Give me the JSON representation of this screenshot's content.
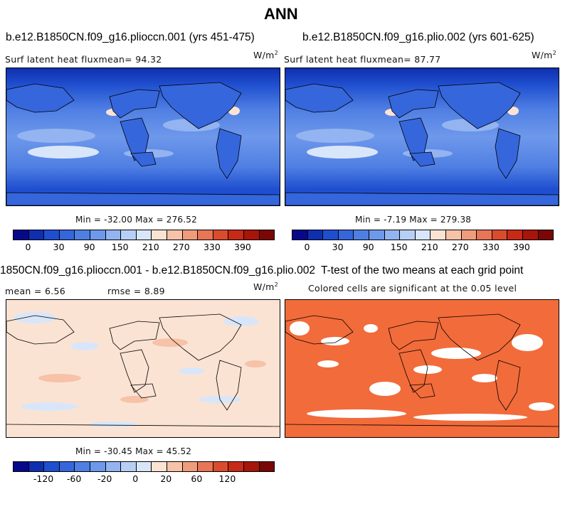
{
  "title": "ANN",
  "panels": {
    "top_left": {
      "title": "b.e12.B1850CN.f09_g16.plioccn.001 (yrs 451-475)",
      "left_label": "Surf latent heat fluxmean=  94.32",
      "units": "W/m",
      "units_sup": "2",
      "stats": "Min = -32.00 Max = 276.52"
    },
    "top_right": {
      "title": "b.e12.B1850CN.f09_g16.plio.002 (yrs 601-625)",
      "left_label": "Surf latent heat fluxmean=  87.77",
      "units": "W/m",
      "units_sup": "2",
      "stats": "Min =  -7.19 Max = 279.38"
    },
    "bottom_left": {
      "title": "1850CN.f09_g16.plioccn.001 - b.e12.B1850CN.f09_g16.plio.002",
      "left_label": "mean =   6.56",
      "rmse_label": "rmse =   8.89",
      "units": "W/m",
      "units_sup": "2",
      "stats": "Min = -30.45 Max =  45.52"
    },
    "bottom_right": {
      "title": "T-test of the two means at each grid point",
      "subtitle": "Colored cells are significant at the 0.05 level"
    }
  },
  "colorbars": {
    "absolute": {
      "ticks": [
        "0",
        "30",
        "90",
        "150",
        "210",
        "270",
        "330",
        "390"
      ],
      "colors": [
        "#08088a",
        "#0f2fb0",
        "#1f4fcf",
        "#3566dc",
        "#4f7fe3",
        "#6e98eb",
        "#93b4f0",
        "#b8cff5",
        "#d9e6fa",
        "#fbe3d3",
        "#f6c2a8",
        "#ef9c7c",
        "#e77556",
        "#db4c2f",
        "#c72a17",
        "#a7150b",
        "#7a0606"
      ]
    },
    "difference": {
      "ticks": [
        "-120",
        "-60",
        "-20",
        "0",
        "20",
        "60",
        "120"
      ],
      "colors": [
        "#08088a",
        "#0f2fb0",
        "#1f4fcf",
        "#3566dc",
        "#4f7fe3",
        "#6e98eb",
        "#93b4f0",
        "#b8cff5",
        "#d9e6fa",
        "#fbe3d3",
        "#f6c2a8",
        "#ef9c7c",
        "#e77556",
        "#db4c2f",
        "#c72a17",
        "#a7150b",
        "#7a0606"
      ]
    }
  }
}
